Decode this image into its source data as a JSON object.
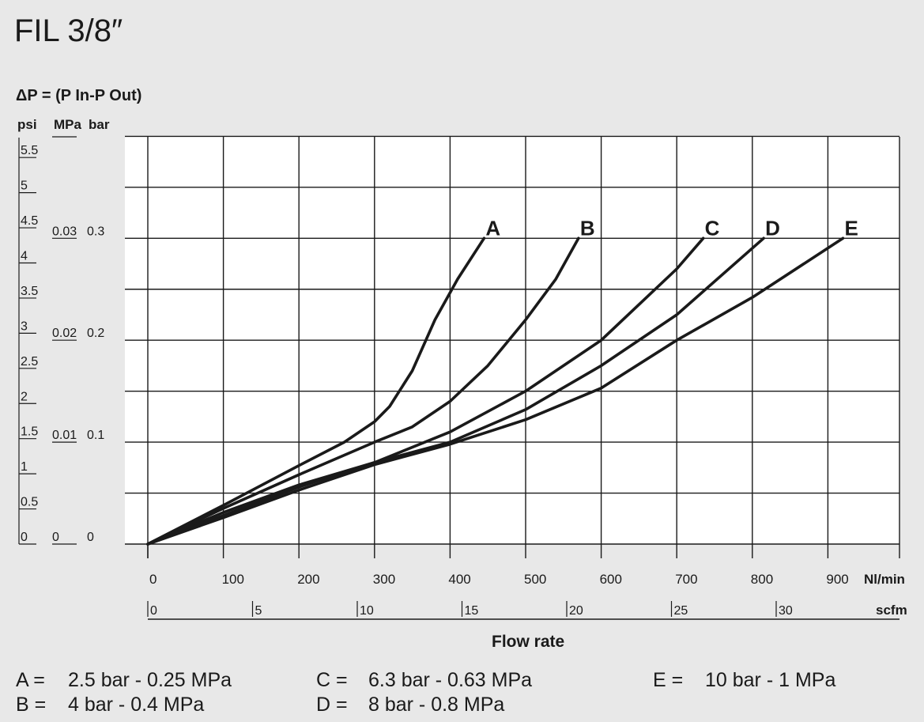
{
  "page": {
    "title": "FIL 3/8″",
    "pressure_heading": "ΔP = (P In-P Out)",
    "left_axis_units": [
      "psi",
      "MPa",
      "bar"
    ],
    "legend": [
      {
        "key": "A",
        "text": "2.5 bar  -  0.25 MPa"
      },
      {
        "key": "B",
        "text": "4 bar  -  0.4 MPa"
      },
      {
        "key": "C",
        "text": "6.3 bar  -  0.63 MPa"
      },
      {
        "key": "D",
        "text": "8 bar  -  0.8 MPa"
      },
      {
        "key": "E",
        "text": "10 bar  -  1 MPa"
      }
    ]
  },
  "chart_data": {
    "type": "line",
    "title": "FIL 3/8″",
    "xlabel": "Flow rate",
    "ylabel": "ΔP = (P In-P Out)",
    "x_unit": "Nl/min",
    "x_secondary_unit": "scfm",
    "xlim": [
      0,
      1000
    ],
    "ylim_bar": [
      0,
      0.4
    ],
    "x_ticks": [
      0,
      100,
      200,
      300,
      400,
      500,
      600,
      700,
      800,
      900
    ],
    "scfm_ticks": [
      0,
      5,
      10,
      15,
      20,
      25,
      30
    ],
    "psi_ticks": [
      "0",
      "0.5",
      "1",
      "1.5",
      "2",
      "2.5",
      "3",
      "3.5",
      "4",
      "4.5",
      "5",
      "5.5"
    ],
    "mpa_ticks": [
      {
        "label": "0",
        "bar": 0
      },
      {
        "label": "0.01",
        "bar": 0.1
      },
      {
        "label": "0.02",
        "bar": 0.2
      },
      {
        "label": "0.03",
        "bar": 0.3
      }
    ],
    "bar_ticks": [
      {
        "label": "0",
        "bar": 0
      },
      {
        "label": "0.1",
        "bar": 0.1
      },
      {
        "label": "0.2",
        "bar": 0.2
      },
      {
        "label": "0.3",
        "bar": 0.3
      }
    ],
    "grid": true,
    "series": [
      {
        "name": "A",
        "x": [
          0,
          100,
          200,
          260,
          300,
          320,
          350,
          380,
          410,
          445
        ],
        "y": [
          0,
          0.038,
          0.077,
          0.1,
          0.12,
          0.135,
          0.17,
          0.22,
          0.26,
          0.3
        ]
      },
      {
        "name": "B",
        "x": [
          0,
          100,
          200,
          300,
          350,
          400,
          450,
          500,
          540,
          570
        ],
        "y": [
          0,
          0.035,
          0.068,
          0.1,
          0.115,
          0.14,
          0.175,
          0.22,
          0.26,
          0.3
        ]
      },
      {
        "name": "C",
        "x": [
          0,
          100,
          200,
          300,
          400,
          500,
          600,
          700,
          735
        ],
        "y": [
          0,
          0.031,
          0.058,
          0.08,
          0.11,
          0.15,
          0.2,
          0.27,
          0.3
        ]
      },
      {
        "name": "D",
        "x": [
          0,
          100,
          200,
          300,
          400,
          500,
          600,
          700,
          815
        ],
        "y": [
          0,
          0.028,
          0.056,
          0.08,
          0.1,
          0.132,
          0.175,
          0.225,
          0.3
        ]
      },
      {
        "name": "E",
        "x": [
          0,
          100,
          200,
          300,
          400,
          500,
          600,
          700,
          800,
          920
        ],
        "y": [
          0,
          0.026,
          0.053,
          0.078,
          0.098,
          0.122,
          0.153,
          0.2,
          0.242,
          0.3
        ]
      }
    ]
  }
}
